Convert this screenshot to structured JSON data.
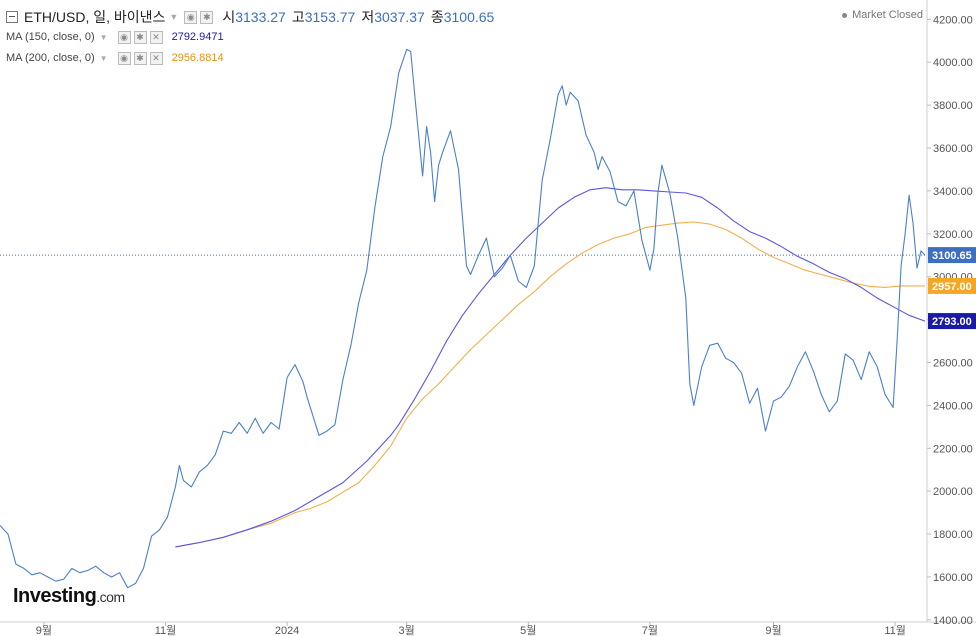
{
  "header": {
    "symbol": "ETH/USD, 일, 바이낸스",
    "open_label": "시",
    "open_value": "3133.27",
    "high_label": "고",
    "high_value": "3153.77",
    "low_label": "저",
    "low_value": "3037.37",
    "close_label": "종",
    "close_value": "3100.65",
    "market_status": "Market Closed"
  },
  "indicators": [
    {
      "label": "MA (150, close, 0)",
      "value": "2792.9471",
      "color": "#2222cc"
    },
    {
      "label": "MA (200, close, 0)",
      "value": "2956.8814",
      "color": "#f5a623"
    }
  ],
  "logo": {
    "main": "Investing",
    "suffix": ".com"
  },
  "colors": {
    "price": "#4a7fd0",
    "ma150": "#5b55e0",
    "ma200": "#f5ae4b",
    "price_tag_bg": "#3b6fc4",
    "ma150_tag_bg": "#1a1aa8",
    "ma200_tag_bg": "#f5a623",
    "axis_text": "#555555"
  },
  "chart_data": {
    "type": "line",
    "title": "",
    "xlabel": "",
    "ylabel": "",
    "ylim": [
      1390,
      4290
    ],
    "y_ticks": [
      1400,
      1600,
      1800,
      2000,
      2200,
      2400,
      2600,
      2800,
      3000,
      3200,
      3400,
      3600,
      3800,
      4000,
      4200
    ],
    "y_tick_labels": [
      "1400.00",
      "1600.00",
      "1800.00",
      "2000.00",
      "2200.00",
      "2400.00",
      "2600.00",
      "2800.00",
      "3000.00",
      "3200.00",
      "3400.00",
      "3600.00",
      "3800.00",
      "4000.00",
      "4200.00"
    ],
    "x_range": [
      0,
      465
    ],
    "x_ticks": [
      {
        "x": 22,
        "label": "9월"
      },
      {
        "x": 83,
        "label": "11월"
      },
      {
        "x": 144,
        "label": "2024"
      },
      {
        "x": 204,
        "label": "3월"
      },
      {
        "x": 265,
        "label": "5월"
      },
      {
        "x": 326,
        "label": "7월"
      },
      {
        "x": 388,
        "label": "9월"
      },
      {
        "x": 449,
        "label": "11월"
      }
    ],
    "last_price": 3100.65,
    "last_price_label": "3100.65",
    "series": [
      {
        "name": "ETH/USD",
        "x": [
          0,
          4,
          8,
          12,
          16,
          20,
          24,
          28,
          32,
          36,
          40,
          44,
          48,
          52,
          56,
          60,
          64,
          68,
          72,
          76,
          80,
          84,
          88,
          90,
          92,
          96,
          100,
          104,
          108,
          112,
          116,
          120,
          124,
          128,
          132,
          136,
          140,
          144,
          148,
          152,
          154,
          156,
          160,
          164,
          168,
          172,
          176,
          180,
          184,
          188,
          192,
          196,
          200,
          204,
          206,
          208,
          212,
          214,
          216,
          218,
          220,
          222,
          226,
          230,
          234,
          236,
          240,
          244,
          248,
          252,
          256,
          260,
          264,
          268,
          272,
          276,
          280,
          282,
          284,
          286,
          290,
          294,
          298,
          300,
          302,
          306,
          310,
          314,
          318,
          322,
          326,
          328,
          330,
          332,
          336,
          340,
          344,
          346,
          348,
          352,
          356,
          360,
          364,
          368,
          372,
          376,
          380,
          384,
          388,
          392,
          396,
          400,
          404,
          408,
          412,
          416,
          420,
          424,
          428,
          432,
          436,
          440,
          444,
          448,
          450,
          452,
          454,
          456,
          458,
          460,
          462,
          464
        ],
        "values": [
          1840,
          1800,
          1660,
          1640,
          1610,
          1620,
          1600,
          1580,
          1590,
          1640,
          1620,
          1630,
          1650,
          1620,
          1600,
          1620,
          1550,
          1570,
          1640,
          1790,
          1820,
          1880,
          2020,
          2120,
          2050,
          2020,
          2090,
          2120,
          2170,
          2280,
          2270,
          2320,
          2270,
          2340,
          2270,
          2320,
          2290,
          2530,
          2590,
          2510,
          2440,
          2380,
          2260,
          2280,
          2310,
          2520,
          2680,
          2880,
          3030,
          3320,
          3560,
          3700,
          3950,
          4060,
          4050,
          3850,
          3470,
          3700,
          3580,
          3350,
          3520,
          3580,
          3680,
          3500,
          3050,
          3010,
          3100,
          3180,
          3000,
          3040,
          3100,
          2980,
          2950,
          3050,
          3450,
          3640,
          3850,
          3890,
          3800,
          3860,
          3820,
          3660,
          3580,
          3500,
          3560,
          3490,
          3350,
          3330,
          3400,
          3170,
          3030,
          3130,
          3390,
          3520,
          3390,
          3180,
          2900,
          2500,
          2400,
          2580,
          2680,
          2690,
          2620,
          2600,
          2550,
          2410,
          2480,
          2280,
          2420,
          2440,
          2490,
          2580,
          2650,
          2560,
          2450,
          2370,
          2420,
          2640,
          2610,
          2520,
          2650,
          2580,
          2450,
          2390,
          2700,
          3050,
          3200,
          3380,
          3250,
          3040,
          3120,
          3100
        ]
      },
      {
        "name": "MA (150, close, 0)",
        "x": [
          88,
          100,
          112,
          124,
          136,
          148,
          160,
          172,
          184,
          196,
          200,
          208,
          216,
          224,
          232,
          240,
          248,
          256,
          264,
          272,
          280,
          288,
          296,
          304,
          312,
          320,
          328,
          336,
          344,
          352,
          360,
          368,
          376,
          384,
          392,
          400,
          408,
          416,
          424,
          432,
          440,
          448,
          456,
          464
        ],
        "values": [
          1740,
          1760,
          1785,
          1820,
          1860,
          1910,
          1975,
          2040,
          2140,
          2260,
          2310,
          2430,
          2560,
          2700,
          2820,
          2920,
          3010,
          3100,
          3180,
          3250,
          3320,
          3370,
          3405,
          3415,
          3405,
          3405,
          3400,
          3395,
          3390,
          3370,
          3320,
          3260,
          3210,
          3180,
          3140,
          3095,
          3060,
          3020,
          2990,
          2950,
          2900,
          2860,
          2820,
          2793
        ]
      },
      {
        "name": "MA (200, close, 0)",
        "x": [
          88,
          100,
          112,
          124,
          136,
          148,
          156,
          164,
          172,
          180,
          188,
          196,
          204,
          212,
          220,
          228,
          236,
          244,
          252,
          260,
          268,
          276,
          284,
          292,
          300,
          308,
          316,
          324,
          332,
          340,
          348,
          356,
          364,
          372,
          380,
          388,
          396,
          404,
          412,
          420,
          428,
          436,
          444,
          452,
          460,
          464
        ],
        "values": [
          1740,
          1760,
          1785,
          1820,
          1850,
          1900,
          1920,
          1950,
          1995,
          2040,
          2120,
          2210,
          2340,
          2430,
          2500,
          2580,
          2660,
          2730,
          2800,
          2870,
          2930,
          3000,
          3060,
          3110,
          3150,
          3180,
          3200,
          3230,
          3240,
          3250,
          3255,
          3245,
          3220,
          3180,
          3130,
          3090,
          3060,
          3030,
          3010,
          2990,
          2970,
          2955,
          2950,
          2957,
          2957,
          2957
        ]
      }
    ]
  }
}
